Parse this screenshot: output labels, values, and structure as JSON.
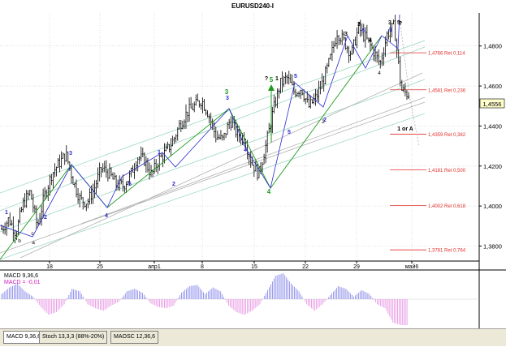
{
  "window_title": "EURUSD240-I",
  "colors": {
    "background": "#ffffff",
    "grid": "#c8c8c8",
    "bars": "#000000",
    "wave_blue": "#2a2ad0",
    "wave_green": "#1e9a1e",
    "fib_line": "#e0302a",
    "channel_green": "#9cd8c0",
    "channel_gray": "#b0b0b0",
    "macd_positive": "#7f7fe8",
    "macd_negative": "#e58ce0",
    "price_box_bg": "#ffffcc"
  },
  "chart_data": {
    "type": "candlestick",
    "symbol": "EURUSD240-I",
    "y_ticks": [
      "1,4800",
      "1,4600",
      "1,4400",
      "1,4200",
      "1,4000",
      "1,3800"
    ],
    "x_ticks": [
      "18",
      "25",
      "апр1",
      "8",
      "15",
      "22",
      "29",
      "май6"
    ],
    "ylim": [
      1.3725,
      1.4965
    ],
    "current_price": "1,4556",
    "ohlc_path": [
      1.3885,
      1.3935,
      1.3865,
      1.401,
      1.407,
      1.3898,
      1.405,
      1.416,
      1.421,
      1.426,
      1.413,
      1.403,
      1.402,
      1.409,
      1.419,
      1.4165,
      1.411,
      1.41,
      1.415,
      1.4245,
      1.423,
      1.4155,
      1.423,
      1.427,
      1.4325,
      1.441,
      1.447,
      1.45,
      1.453,
      1.446,
      1.435,
      1.433,
      1.443,
      1.436,
      1.434,
      1.422,
      1.4158,
      1.43,
      1.447,
      1.461,
      1.464,
      1.457,
      1.459,
      1.4495,
      1.454,
      1.462,
      1.473,
      1.487,
      1.482,
      1.476,
      1.489,
      1.484,
      1.478,
      1.471,
      1.486,
      1.49,
      1.458,
      1.4556
    ],
    "fib_levels": [
      {
        "label": "1,4766 Ret 0,114",
        "value": 1.4766
      },
      {
        "label": "1,4581 Ret 0,236",
        "value": 1.4581
      },
      {
        "label": "1,4359 Ret 0,382",
        "value": 1.4359
      },
      {
        "label": "1,4181 Ret 0,500",
        "value": 1.4181
      },
      {
        "label": "1,4002 Ret 0,618",
        "value": 1.4002
      },
      {
        "label": "1,3781 Ret 0,764",
        "value": 1.3781
      }
    ],
    "wave_labels": {
      "top": [
        "3",
        "5",
        "?",
        "3",
        "5",
        "4",
        "3",
        "5",
        "?",
        "1",
        "2",
        "5"
      ],
      "green": [
        "3",
        "5",
        "4"
      ],
      "annotation": "1 or A",
      "small": [
        "a",
        "b",
        "c",
        "2",
        "4"
      ]
    },
    "macd": {
      "label": "MACD 9,36,6",
      "value_label": "MACD = -0,01",
      "values": [
        0.2,
        0.45,
        0.6,
        0.3,
        0.1,
        -0.3,
        -0.6,
        -0.5,
        -0.2,
        0.4,
        0.3,
        -0.2,
        -0.35,
        -0.45,
        -0.25,
        -0.1,
        0.3,
        0.4,
        0.25,
        -0.15,
        -0.3,
        -0.35,
        -0.25,
        0.25,
        0.5,
        0.55,
        0.2,
        0.45,
        0.3,
        -0.25,
        -0.5,
        -0.6,
        -0.45,
        -0.2,
        0.35,
        0.9,
        1.0,
        0.6,
        0.3,
        -0.2,
        -0.45,
        -0.2,
        0.15,
        0.5,
        0.4,
        0.1,
        0.35,
        0.2,
        -0.2,
        -0.35,
        -0.9,
        -1.0
      ]
    }
  },
  "indicator_tabs": [
    "MACD 9,36,6",
    "Stoch 13,3,3 (88%-20%)",
    "MAOSC 12,36,6"
  ]
}
